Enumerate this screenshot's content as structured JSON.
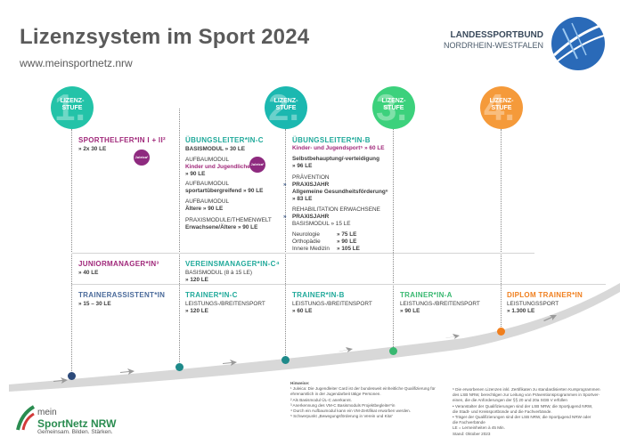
{
  "header": {
    "title": "Lizenzsystem im Sport 2024",
    "url": "www.meinsportnetz.nrw",
    "org_line1": "LANDESSPORTBUND",
    "org_line2": "NORDRHEIN-WESTFALEN"
  },
  "stages": [
    {
      "num": "1.",
      "line1": "LIZENZ-",
      "line2": "STUFE",
      "color": "#23c3a8"
    },
    {
      "num": "2.",
      "line1": "LIZENZ-",
      "line2": "STUFE",
      "color": "#1bb8b0"
    },
    {
      "num": "3.",
      "line1": "LIZENZ-",
      "line2": "STUFE",
      "color": "#3cd17c"
    },
    {
      "num": "4.",
      "line1": "LIZENZ-",
      "line2": "STUFE",
      "color": "#f59a3a"
    }
  ],
  "col1": {
    "sporthelfer_title": "SPORTHELFER*IN I + II²",
    "sporthelfer_le": "» 2x 30 LE",
    "juleica": "Juleica¹",
    "juniormanager_title": "JUNIORMANAGER*IN³",
    "juniormanager_le": "» 40 LE",
    "trainerassistent_title": "TRAINERASSISTENT*IN",
    "trainerassistent_le": "» 15 – 30 LE"
  },
  "col2": {
    "ul_c_title": "ÜBUNGSLEITER*IN-C",
    "basismodul": "BASISMODUL » 30 LE",
    "aufbau1_label": "AUFBAUMODUL",
    "aufbau1_name": "Kinder und Jugendliche",
    "aufbau1_le": "» 90 LE",
    "aufbau2_label": "AUFBAUMODUL",
    "aufbau2_name": "sportartübergreifend » 90 LE",
    "aufbau3_label": "AUFBAUMODUL",
    "aufbau3_name": "Ältere » 90 LE",
    "praxis_label": "PRAXISMODULE/THEMENWELT",
    "praxis_name": "Erwachsene/Ältere » 90 LE",
    "juleica": "Juleica¹",
    "vm_title": "VEREINSMANAGER*IN-C⁴",
    "vm_basis": "BASISMODUL (8 à 15 LE)",
    "vm_le": "» 120 LE",
    "trainer_c_title": "TRAINER*IN-C",
    "trainer_c_sub": "LEISTUNGS-/BREITENSPORT",
    "trainer_c_le": "» 120 LE"
  },
  "col3": {
    "ul_b_title": "ÜBUNGSLEITER*IN-B",
    "kinder": "Kinder- und Jugendsport⁵ » 60 LE",
    "selbst1": "Selbstbehauptung/-verteidigung",
    "selbst2": "» 96 LE",
    "praev_label": "PRÄVENTION",
    "praxisjahr1": "PRAXISJAHR",
    "allg": "Allgemeine Gesundheitsförderung⁶",
    "allg_le": "» 83 LE",
    "reha_label": "REHABILITATION ERWACHSENE",
    "praxisjahr2": "PRAXISJAHR",
    "reha_basis": "BASISMODUL » 15 LE",
    "neuro": "Neurologie",
    "neuro_le": "» 75 LE",
    "ortho": "Orthopädie",
    "ortho_le": "» 90 LE",
    "innere": "Innere Medizin",
    "innere_le": "» 105 LE",
    "trainer_b_title": "TRAINER*IN-B",
    "trainer_b_sub": "LEISTUNGS-/BREITENSPORT",
    "trainer_b_le": "» 60 LE"
  },
  "col4": {
    "trainer_a_title": "TRAINER*IN-A",
    "trainer_a_sub": "LEISTUNGS-/BREITENSPORT",
    "trainer_a_le": "» 90 LE"
  },
  "col5": {
    "diplom_title": "DIPLOM TRAINER*IN",
    "diplom_sub": "LEISTUNGSSPORT",
    "diplom_le": "» 1.300 LE"
  },
  "footer": {
    "brand_line1": "mein",
    "brand_line2": "SportNetz NRW",
    "brand_sub": "Gemeinsam. Bilden. Stärken.",
    "hinweise_title": "Hinweise:",
    "notes_left": [
      "¹ Juleica: Die Jugendleiter Card ist der bundesweit einheitliche Qualifizierung für",
      "  ehrenamtlich in der Jugendarbeit tätige Personen.",
      "² Als Basismodul ÜL-C anerkannt.",
      "³ Anerkennung des VM-C Basismoduls Projektbegleiter*in",
      "⁴ Durch ein Aufbaumodul kann ein VM-Zertifikat erworben werden.",
      "⁵ Schwerpunkt „Bewegungsförderung in Verein und Kita“"
    ],
    "notes_right": [
      "⁶ Die erworbenen Lizenzen inkl. Zertifikaten zu standardisierten  Kursprogrammen",
      "  des LSB NRW, berechtigen zur Leitung von Präventionsprogrammen in Sportver-",
      "  einen, die die Anforderungen der §§ 20 und 20a SGB V erfüllen",
      "  • Veranstalter der Qualifizierungen sind der LSB NRW, die Sportjugend NRW,",
      "    die Stadt- und Kreissportbünde und die Fachverbände.",
      "  • Träger der Qualifizierungen sind der LSB NRW, die Sportjugend NRW oder",
      "    die Fachverbände",
      "LE = Lerneinheiten à 45 Min.",
      "Stand: Oktober 2023"
    ]
  }
}
